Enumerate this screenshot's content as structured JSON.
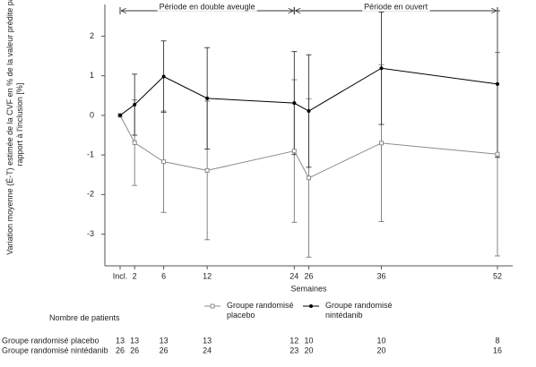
{
  "chart_data": {
    "type": "line",
    "x_label": "Semaines",
    "y_label": "Variation moyenne (É-T) estimée de la CVF en % de la valeur prédite par rapport à l'inclusion [%]",
    "x": [
      0,
      2,
      6,
      12,
      24,
      26,
      36,
      52
    ],
    "series": [
      {
        "name": "Groupe randomisé placebo",
        "color": "#8c8c8c",
        "marker": "square",
        "values": [
          0,
          -0.69,
          -1.17,
          -1.39,
          -0.9,
          -1.58,
          -0.7,
          -0.98
        ],
        "errors": [
          null,
          1.08,
          1.28,
          1.75,
          1.8,
          2.0,
          1.98,
          2.57
        ]
      },
      {
        "name": "Groupe randomisé nintédanib",
        "color": "#000000",
        "marker": "circle",
        "values": [
          0,
          0.27,
          0.98,
          0.43,
          0.31,
          0.11,
          1.19,
          0.79
        ],
        "errors": [
          null,
          0.77,
          0.9,
          1.28,
          1.3,
          1.42,
          1.42,
          1.85
        ]
      }
    ],
    "xlim": [
      -2.1,
      54.1
    ],
    "ylim": [
      -3.8,
      2.8
    ],
    "xticks": [
      {
        "value": 0,
        "label": "Incl."
      },
      2,
      6,
      12,
      24,
      26,
      36,
      52
    ],
    "yticks": [
      -3,
      -2,
      -1,
      0,
      1,
      2
    ],
    "periods": [
      {
        "label": "Période en double aveugle",
        "start": 0,
        "end": 24
      },
      {
        "label": "Période en ouvert",
        "start": 24,
        "end": 52
      }
    ],
    "patients": {
      "title": "Nombre de patients",
      "rows": [
        {
          "label": "Groupe randomisé placebo",
          "counts": [
            13,
            13,
            13,
            13,
            12,
            10,
            10,
            8
          ]
        },
        {
          "label": "Groupe randomisé nintédanib",
          "counts": [
            26,
            26,
            26,
            24,
            23,
            20,
            20,
            16
          ]
        }
      ]
    }
  }
}
